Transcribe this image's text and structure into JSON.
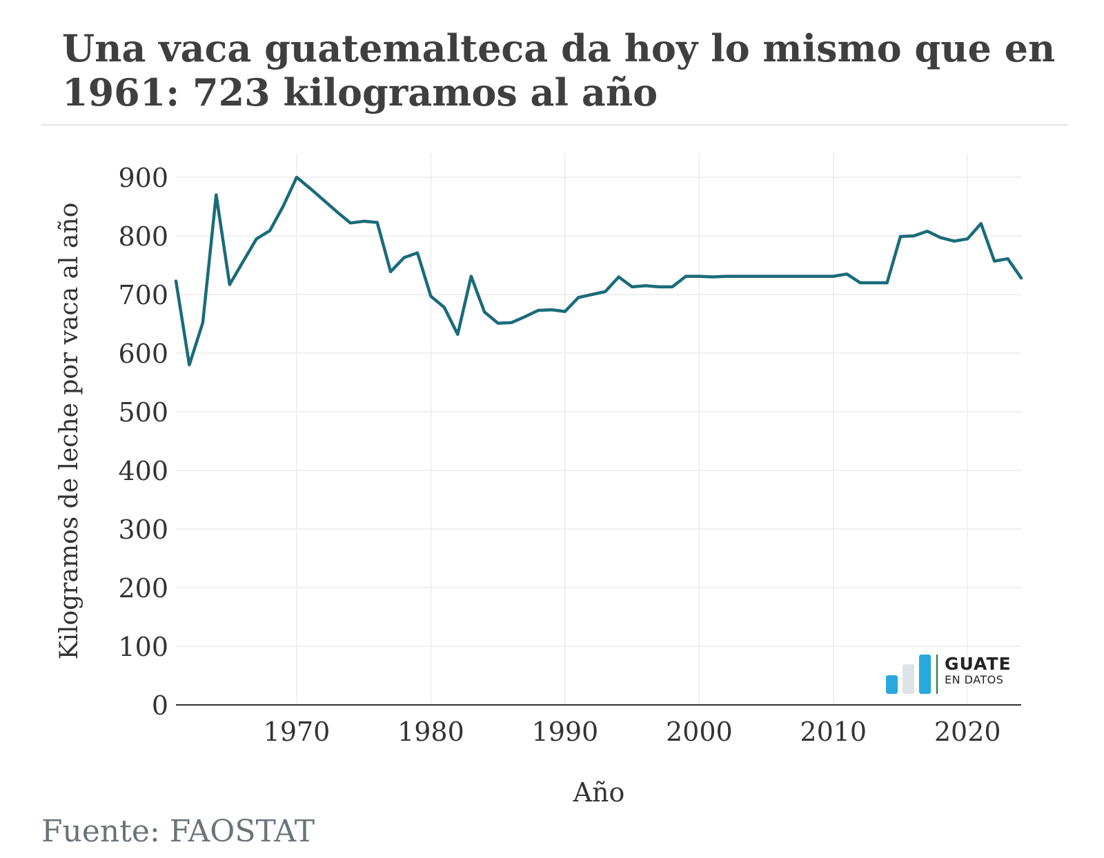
{
  "chart_data": {
    "type": "line",
    "title": "Una vaca guatemalteca da hoy lo mismo que en 1961: 723 kilogramos al año",
    "xlabel": "Año",
    "ylabel": "Kilogramos de leche por vaca al año",
    "xlim": [
      1961,
      2024
    ],
    "ylim": [
      0,
      900
    ],
    "x_ticks": [
      "1970",
      "1980",
      "1990",
      "2000",
      "2010",
      "2020"
    ],
    "y_ticks": [
      "0",
      "100",
      "200",
      "300",
      "400",
      "500",
      "600",
      "700",
      "800",
      "900"
    ],
    "grid": true,
    "series": [
      {
        "color": "#1b6b7a",
        "x": [
          1961,
          1962,
          1963,
          1964,
          1965,
          1966,
          1967,
          1968,
          1969,
          1970,
          1971,
          1972,
          1973,
          1974,
          1975,
          1976,
          1977,
          1978,
          1979,
          1980,
          1981,
          1982,
          1983,
          1984,
          1985,
          1986,
          1987,
          1988,
          1989,
          1990,
          1991,
          1992,
          1993,
          1994,
          1995,
          1996,
          1997,
          1998,
          1999,
          2000,
          2001,
          2002,
          2003,
          2004,
          2005,
          2006,
          2007,
          2008,
          2009,
          2010,
          2011,
          2012,
          2013,
          2014,
          2015,
          2016,
          2017,
          2018,
          2019,
          2020,
          2021,
          2022,
          2023,
          2024
        ],
        "y": [
          723,
          580,
          652,
          870,
          717,
          756,
          795,
          809,
          851,
          900,
          881,
          861,
          841,
          822,
          825,
          823,
          739,
          763,
          771,
          697,
          678,
          632,
          731,
          670,
          651,
          652,
          662,
          673,
          674,
          671,
          695,
          700,
          705,
          730,
          713,
          715,
          713,
          713,
          731,
          731,
          730,
          731,
          731,
          731,
          731,
          731,
          731,
          731,
          731,
          731,
          735,
          720,
          720,
          720,
          799,
          800,
          808,
          797,
          791,
          795,
          821,
          757,
          761,
          728
        ]
      }
    ]
  },
  "source_text": "Fuente: FAOSTAT",
  "logo": {
    "line1": "GUATE",
    "line2": "EN DATOS",
    "colors": [
      "#29a8e0",
      "#dde3e6",
      "#29a8e0"
    ],
    "divider_color": "#1b7a3a"
  }
}
